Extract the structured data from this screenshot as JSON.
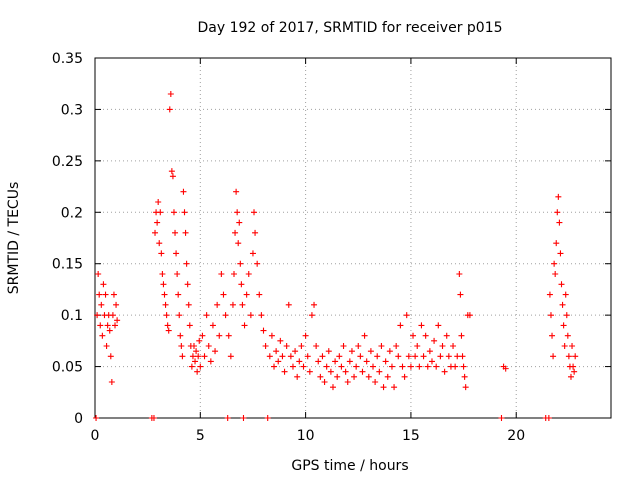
{
  "chart_data": {
    "type": "scatter",
    "title": "Day 192 of 2017, SRMTID for receiver p015",
    "xlabel": "GPS time / hours",
    "ylabel": "SRMTID / TECUs",
    "xlim": [
      0,
      24.5
    ],
    "ylim": [
      0,
      0.35
    ],
    "x_ticks": [
      0,
      5,
      10,
      15,
      20
    ],
    "y_ticks": [
      0,
      0.05,
      0.1,
      0.15,
      0.2,
      0.25,
      0.3,
      0.35
    ],
    "x_tick_labels": [
      "0",
      "5",
      "10",
      "15",
      "20"
    ],
    "y_tick_labels": [
      "0",
      "0.05",
      "0.1",
      "0.15",
      "0.2",
      "0.25",
      "0.3",
      "0.35"
    ],
    "grid": true,
    "marker": "+",
    "color": "#ff0000",
    "series": [
      {
        "name": "p015",
        "points": [
          [
            0.05,
            0
          ],
          [
            0.1,
            0.1
          ],
          [
            0.15,
            0.14
          ],
          [
            0.2,
            0.12
          ],
          [
            0.25,
            0.09
          ],
          [
            0.3,
            0.11
          ],
          [
            0.35,
            0.08
          ],
          [
            0.4,
            0.13
          ],
          [
            0.45,
            0.1
          ],
          [
            0.5,
            0.12
          ],
          [
            0.55,
            0.07
          ],
          [
            0.6,
            0.09
          ],
          [
            0.65,
            0.1
          ],
          [
            0.7,
            0.085
          ],
          [
            0.75,
            0.06
          ],
          [
            0.8,
            0.035
          ],
          [
            0.85,
            0.1
          ],
          [
            0.9,
            0.12
          ],
          [
            0.95,
            0.09
          ],
          [
            1.0,
            0.11
          ],
          [
            1.05,
            0.095
          ],
          [
            2.7,
            0
          ],
          [
            2.8,
            0
          ],
          [
            2.85,
            0.18
          ],
          [
            2.9,
            0.2
          ],
          [
            2.95,
            0.19
          ],
          [
            3.0,
            0.21
          ],
          [
            3.05,
            0.17
          ],
          [
            3.1,
            0.2
          ],
          [
            3.15,
            0.16
          ],
          [
            3.2,
            0.14
          ],
          [
            3.25,
            0.13
          ],
          [
            3.3,
            0.12
          ],
          [
            3.35,
            0.11
          ],
          [
            3.4,
            0.1
          ],
          [
            3.45,
            0.09
          ],
          [
            3.5,
            0.085
          ],
          [
            3.55,
            0.3
          ],
          [
            3.6,
            0.315
          ],
          [
            3.65,
            0.24
          ],
          [
            3.7,
            0.235
          ],
          [
            3.75,
            0.2
          ],
          [
            3.8,
            0.18
          ],
          [
            3.85,
            0.16
          ],
          [
            3.9,
            0.14
          ],
          [
            3.95,
            0.12
          ],
          [
            4.0,
            0.1
          ],
          [
            4.05,
            0.08
          ],
          [
            4.1,
            0.07
          ],
          [
            4.15,
            0.06
          ],
          [
            4.2,
            0.22
          ],
          [
            4.25,
            0.2
          ],
          [
            4.3,
            0.18
          ],
          [
            4.35,
            0.15
          ],
          [
            4.4,
            0.13
          ],
          [
            4.45,
            0.11
          ],
          [
            4.5,
            0.09
          ],
          [
            4.55,
            0.07
          ],
          [
            4.6,
            0.05
          ],
          [
            4.65,
            0.06
          ],
          [
            4.7,
            0.07
          ],
          [
            4.75,
            0.055
          ],
          [
            4.8,
            0.065
          ],
          [
            4.85,
            0.045
          ],
          [
            4.9,
            0.06
          ],
          [
            4.95,
            0.075
          ],
          [
            5.0,
            0.05
          ],
          [
            5.1,
            0.08
          ],
          [
            5.2,
            0.06
          ],
          [
            5.3,
            0.1
          ],
          [
            5.4,
            0.07
          ],
          [
            5.5,
            0.055
          ],
          [
            5.6,
            0.09
          ],
          [
            5.7,
            0.065
          ],
          [
            5.8,
            0.11
          ],
          [
            5.9,
            0.08
          ],
          [
            6.0,
            0.14
          ],
          [
            6.1,
            0.12
          ],
          [
            6.2,
            0.1
          ],
          [
            6.3,
            0
          ],
          [
            6.35,
            0.08
          ],
          [
            6.45,
            0.06
          ],
          [
            6.55,
            0.11
          ],
          [
            6.6,
            0.14
          ],
          [
            6.65,
            0.18
          ],
          [
            6.7,
            0.22
          ],
          [
            6.75,
            0.2
          ],
          [
            6.8,
            0.17
          ],
          [
            6.85,
            0.19
          ],
          [
            6.9,
            0.15
          ],
          [
            6.95,
            0.13
          ],
          [
            7.0,
            0.11
          ],
          [
            7.05,
            0
          ],
          [
            7.1,
            0.09
          ],
          [
            7.2,
            0.12
          ],
          [
            7.3,
            0.14
          ],
          [
            7.4,
            0.1
          ],
          [
            7.5,
            0.16
          ],
          [
            7.55,
            0.2
          ],
          [
            7.6,
            0.18
          ],
          [
            7.7,
            0.15
          ],
          [
            7.8,
            0.12
          ],
          [
            7.9,
            0.1
          ],
          [
            8.0,
            0.085
          ],
          [
            8.1,
            0.07
          ],
          [
            8.2,
            0
          ],
          [
            8.3,
            0.06
          ],
          [
            8.4,
            0.08
          ],
          [
            8.5,
            0.05
          ],
          [
            8.6,
            0.065
          ],
          [
            8.7,
            0.055
          ],
          [
            8.8,
            0.075
          ],
          [
            8.9,
            0.06
          ],
          [
            9.0,
            0.045
          ],
          [
            9.1,
            0.07
          ],
          [
            9.2,
            0.11
          ],
          [
            9.3,
            0.06
          ],
          [
            9.4,
            0.05
          ],
          [
            9.5,
            0.065
          ],
          [
            9.6,
            0.04
          ],
          [
            9.7,
            0.055
          ],
          [
            9.8,
            0.07
          ],
          [
            9.9,
            0.05
          ],
          [
            10.0,
            0.08
          ],
          [
            10.1,
            0.06
          ],
          [
            10.2,
            0.045
          ],
          [
            10.3,
            0.1
          ],
          [
            10.4,
            0.11
          ],
          [
            10.5,
            0.07
          ],
          [
            10.6,
            0.055
          ],
          [
            10.7,
            0.04
          ],
          [
            10.8,
            0.06
          ],
          [
            10.9,
            0.035
          ],
          [
            11.0,
            0.05
          ],
          [
            11.1,
            0.065
          ],
          [
            11.2,
            0.045
          ],
          [
            11.3,
            0.03
          ],
          [
            11.4,
            0.055
          ],
          [
            11.5,
            0.04
          ],
          [
            11.6,
            0.06
          ],
          [
            11.7,
            0.05
          ],
          [
            11.8,
            0.07
          ],
          [
            11.9,
            0.045
          ],
          [
            12.0,
            0.035
          ],
          [
            12.1,
            0.055
          ],
          [
            12.2,
            0.065
          ],
          [
            12.3,
            0.04
          ],
          [
            12.4,
            0.05
          ],
          [
            12.5,
            0.07
          ],
          [
            12.6,
            0.06
          ],
          [
            12.7,
            0.045
          ],
          [
            12.8,
            0.08
          ],
          [
            12.9,
            0.055
          ],
          [
            13.0,
            0.04
          ],
          [
            13.1,
            0.065
          ],
          [
            13.2,
            0.05
          ],
          [
            13.3,
            0.035
          ],
          [
            13.4,
            0.06
          ],
          [
            13.5,
            0.045
          ],
          [
            13.6,
            0.07
          ],
          [
            13.7,
            0.03
          ],
          [
            13.8,
            0.055
          ],
          [
            13.9,
            0.04
          ],
          [
            14.0,
            0.065
          ],
          [
            14.1,
            0.05
          ],
          [
            14.2,
            0.03
          ],
          [
            14.3,
            0.07
          ],
          [
            14.4,
            0.06
          ],
          [
            14.5,
            0.09
          ],
          [
            14.6,
            0.05
          ],
          [
            14.7,
            0.04
          ],
          [
            14.8,
            0.1
          ],
          [
            14.9,
            0.06
          ],
          [
            15.0,
            0.05
          ],
          [
            15.1,
            0.08
          ],
          [
            15.2,
            0.06
          ],
          [
            15.3,
            0.07
          ],
          [
            15.4,
            0.05
          ],
          [
            15.5,
            0.09
          ],
          [
            15.6,
            0.06
          ],
          [
            15.7,
            0.08
          ],
          [
            15.8,
            0.05
          ],
          [
            15.9,
            0.065
          ],
          [
            16.0,
            0.055
          ],
          [
            16.1,
            0.075
          ],
          [
            16.2,
            0.05
          ],
          [
            16.3,
            0.09
          ],
          [
            16.4,
            0.06
          ],
          [
            16.5,
            0.07
          ],
          [
            16.6,
            0.045
          ],
          [
            16.7,
            0.08
          ],
          [
            16.8,
            0.06
          ],
          [
            16.9,
            0.05
          ],
          [
            17.0,
            0.07
          ],
          [
            17.1,
            0.05
          ],
          [
            17.2,
            0.06
          ],
          [
            17.3,
            0.14
          ],
          [
            17.35,
            0.12
          ],
          [
            17.4,
            0.08
          ],
          [
            17.45,
            0.06
          ],
          [
            17.5,
            0.05
          ],
          [
            17.55,
            0.04
          ],
          [
            17.6,
            0.03
          ],
          [
            17.7,
            0.1
          ],
          [
            17.8,
            0.1
          ],
          [
            19.3,
            0
          ],
          [
            19.4,
            0.05
          ],
          [
            19.5,
            0.048
          ],
          [
            21.4,
            0
          ],
          [
            21.55,
            0
          ],
          [
            21.6,
            0.12
          ],
          [
            21.65,
            0.1
          ],
          [
            21.7,
            0.08
          ],
          [
            21.75,
            0.06
          ],
          [
            21.8,
            0.15
          ],
          [
            21.85,
            0.14
          ],
          [
            21.9,
            0.17
          ],
          [
            21.95,
            0.2
          ],
          [
            22.0,
            0.215
          ],
          [
            22.05,
            0.19
          ],
          [
            22.1,
            0.16
          ],
          [
            22.15,
            0.13
          ],
          [
            22.2,
            0.11
          ],
          [
            22.25,
            0.09
          ],
          [
            22.3,
            0.07
          ],
          [
            22.35,
            0.12
          ],
          [
            22.4,
            0.1
          ],
          [
            22.45,
            0.08
          ],
          [
            22.5,
            0.06
          ],
          [
            22.55,
            0.05
          ],
          [
            22.6,
            0.04
          ],
          [
            22.65,
            0.07
          ],
          [
            22.7,
            0.05
          ],
          [
            22.75,
            0.045
          ],
          [
            22.8,
            0.06
          ]
        ]
      }
    ]
  }
}
